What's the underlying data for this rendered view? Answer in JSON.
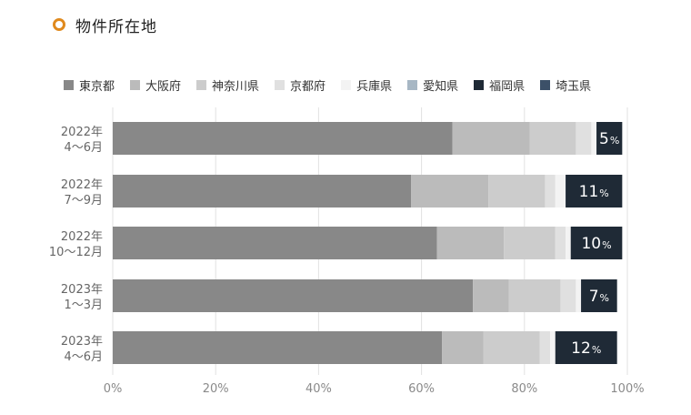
{
  "header": {
    "title": "物件所在地"
  },
  "chart_data": {
    "type": "bar",
    "orientation": "horizontal",
    "stacked": true,
    "categories": [
      [
        "2022年",
        "4〜6月"
      ],
      [
        "2022年",
        "7〜9月"
      ],
      [
        "2022年",
        "10〜12月"
      ],
      [
        "2023年",
        "1〜3月"
      ],
      [
        "2023年",
        "4〜6月"
      ]
    ],
    "series": [
      {
        "name": "東京都",
        "color": "#888888",
        "values": [
          66,
          58,
          63,
          70,
          64
        ]
      },
      {
        "name": "大阪府",
        "color": "#bbbbbb",
        "values": [
          15,
          15,
          13,
          7,
          8
        ]
      },
      {
        "name": "神奈川県",
        "color": "#cccccc",
        "values": [
          9,
          11,
          10,
          10,
          11
        ]
      },
      {
        "name": "京都府",
        "color": "#e0e0e0",
        "values": [
          3,
          2,
          2,
          3,
          2
        ]
      },
      {
        "name": "兵庫県",
        "color": "#f3f3f3",
        "values": [
          1,
          2,
          1,
          1,
          1
        ]
      },
      {
        "name": "愛知県",
        "color": "#a7b7c4",
        "values": [
          0,
          0,
          0,
          0,
          0
        ]
      },
      {
        "name": "福岡県",
        "color": "#1f2a36",
        "values": [
          5,
          11,
          10,
          7,
          12
        ],
        "labels": [
          "5",
          "11",
          "10",
          "7",
          "12"
        ]
      },
      {
        "name": "埼玉県",
        "color": "#3c5068",
        "values": [
          0,
          0,
          0,
          0,
          0
        ]
      }
    ],
    "label_unit": "%",
    "x_ticks": [
      "0%",
      "20%",
      "40%",
      "60%",
      "80%",
      "100%"
    ],
    "xlim": [
      0,
      100
    ],
    "grid": true,
    "legend_position": "top"
  }
}
